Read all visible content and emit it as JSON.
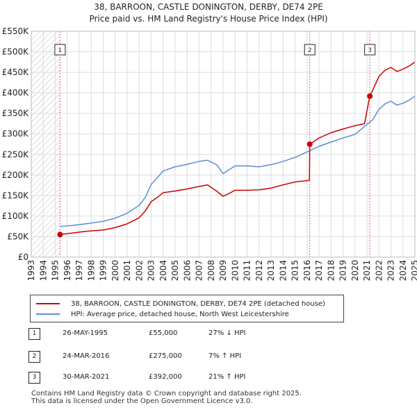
{
  "chart_data": {
    "type": "line",
    "title": "38, BARROON, CASTLE DONINGTON, DERBY, DE74 2PE",
    "subtitle": "Price paid vs. HM Land Registry's House Price Index (HPI)",
    "xlim": [
      1993,
      2025
    ],
    "ylim": [
      0,
      550000
    ],
    "y_ticks": [
      {
        "value": 0,
        "label": "£0"
      },
      {
        "value": 50000,
        "label": "£50K"
      },
      {
        "value": 100000,
        "label": "£100K"
      },
      {
        "value": 150000,
        "label": "£150K"
      },
      {
        "value": 200000,
        "label": "£200K"
      },
      {
        "value": 250000,
        "label": "£250K"
      },
      {
        "value": 300000,
        "label": "£300K"
      },
      {
        "value": 350000,
        "label": "£350K"
      },
      {
        "value": 400000,
        "label": "£400K"
      },
      {
        "value": 450000,
        "label": "£450K"
      },
      {
        "value": 500000,
        "label": "£500K"
      },
      {
        "value": 550000,
        "label": "£550K"
      }
    ],
    "x_ticks": [
      "1993",
      "1994",
      "1995",
      "1996",
      "1997",
      "1998",
      "1999",
      "2000",
      "2001",
      "2002",
      "2003",
      "2004",
      "2005",
      "2006",
      "2007",
      "2008",
      "2009",
      "2010",
      "2011",
      "2012",
      "2013",
      "2014",
      "2015",
      "2016",
      "2017",
      "2018",
      "2019",
      "2020",
      "2021",
      "2022",
      "2023",
      "2024",
      "2025"
    ],
    "hatch_until": 1995.4,
    "series": [
      {
        "name": "38, BARROON, CASTLE DONINGTON, DERBY, DE74 2PE (detached house)",
        "color": "#cc0000",
        "x": [
          1995.4,
          1996,
          1997,
          1998,
          1999,
          2000,
          2001,
          2002,
          2002.5,
          2003,
          2003.5,
          2004,
          2005,
          2006,
          2007,
          2007.7,
          2008.5,
          2009,
          2009.5,
          2010,
          2011,
          2012,
          2013,
          2014,
          2015,
          2016.2,
          2016.23,
          2017,
          2018,
          2019,
          2020,
          2020.8,
          2021.24,
          2021.5,
          2022,
          2022.5,
          2023,
          2023.5,
          2024,
          2024.5,
          2025
        ],
        "y": [
          55000,
          57000,
          61000,
          64000,
          66000,
          72000,
          81000,
          96000,
          112000,
          135000,
          145000,
          157000,
          161000,
          166000,
          172000,
          176000,
          160000,
          148000,
          155000,
          163000,
          163000,
          164000,
          168000,
          176000,
          183000,
          187000,
          275000,
          290000,
          303000,
          312000,
          320000,
          325000,
          392000,
          408000,
          440000,
          455000,
          462000,
          452000,
          458000,
          465000,
          475000
        ]
      },
      {
        "name": "HPI: Average price, detached house, North West Leicestershire",
        "color": "#5b8fd0",
        "x": [
          1995.4,
          1996,
          1997,
          1998,
          1999,
          2000,
          2001,
          2002,
          2002.5,
          2003,
          2003.5,
          2004,
          2005,
          2006,
          2007,
          2007.7,
          2008.5,
          2009,
          2009.5,
          2010,
          2011,
          2012,
          2013,
          2014,
          2015,
          2016,
          2017,
          2018,
          2019,
          2020,
          2021,
          2021.5,
          2022,
          2022.5,
          2023,
          2023.5,
          2024,
          2024.5,
          2025
        ],
        "y": [
          75000,
          76000,
          79000,
          83000,
          87000,
          95000,
          107000,
          126000,
          145000,
          177000,
          193000,
          210000,
          220000,
          226000,
          233000,
          236000,
          224000,
          203000,
          213000,
          222000,
          222000,
          220000,
          225000,
          233000,
          243000,
          256000,
          270000,
          280000,
          290000,
          299000,
          323000,
          335000,
          360000,
          373000,
          380000,
          370000,
          375000,
          382000,
          392000
        ]
      }
    ],
    "annotations": [
      {
        "label": "1",
        "x": 1995.4,
        "y": 55000
      },
      {
        "label": "2",
        "x": 2016.23,
        "y": 275000
      },
      {
        "label": "3",
        "x": 2021.24,
        "y": 392000
      }
    ]
  },
  "legend": {
    "property_label": "38, BARROON, CASTLE DONINGTON, DERBY, DE74 2PE (detached house)",
    "hpi_label": "HPI: Average price, detached house, North West Leicestershire",
    "property_color": "#cc0000",
    "hpi_color": "#5b8fd0"
  },
  "sales": [
    {
      "num": "1",
      "date": "26-MAY-1995",
      "price": "£55,000",
      "hpi": "27% ↓ HPI"
    },
    {
      "num": "2",
      "date": "24-MAR-2016",
      "price": "£275,000",
      "hpi": "7% ↑ HPI"
    },
    {
      "num": "3",
      "date": "30-MAR-2021",
      "price": "£392,000",
      "hpi": "21% ↑ HPI"
    }
  ],
  "footer": {
    "line1": "Contains HM Land Registry data © Crown copyright and database right 2025.",
    "line2": "This data is licensed under the Open Government Licence v3.0."
  }
}
